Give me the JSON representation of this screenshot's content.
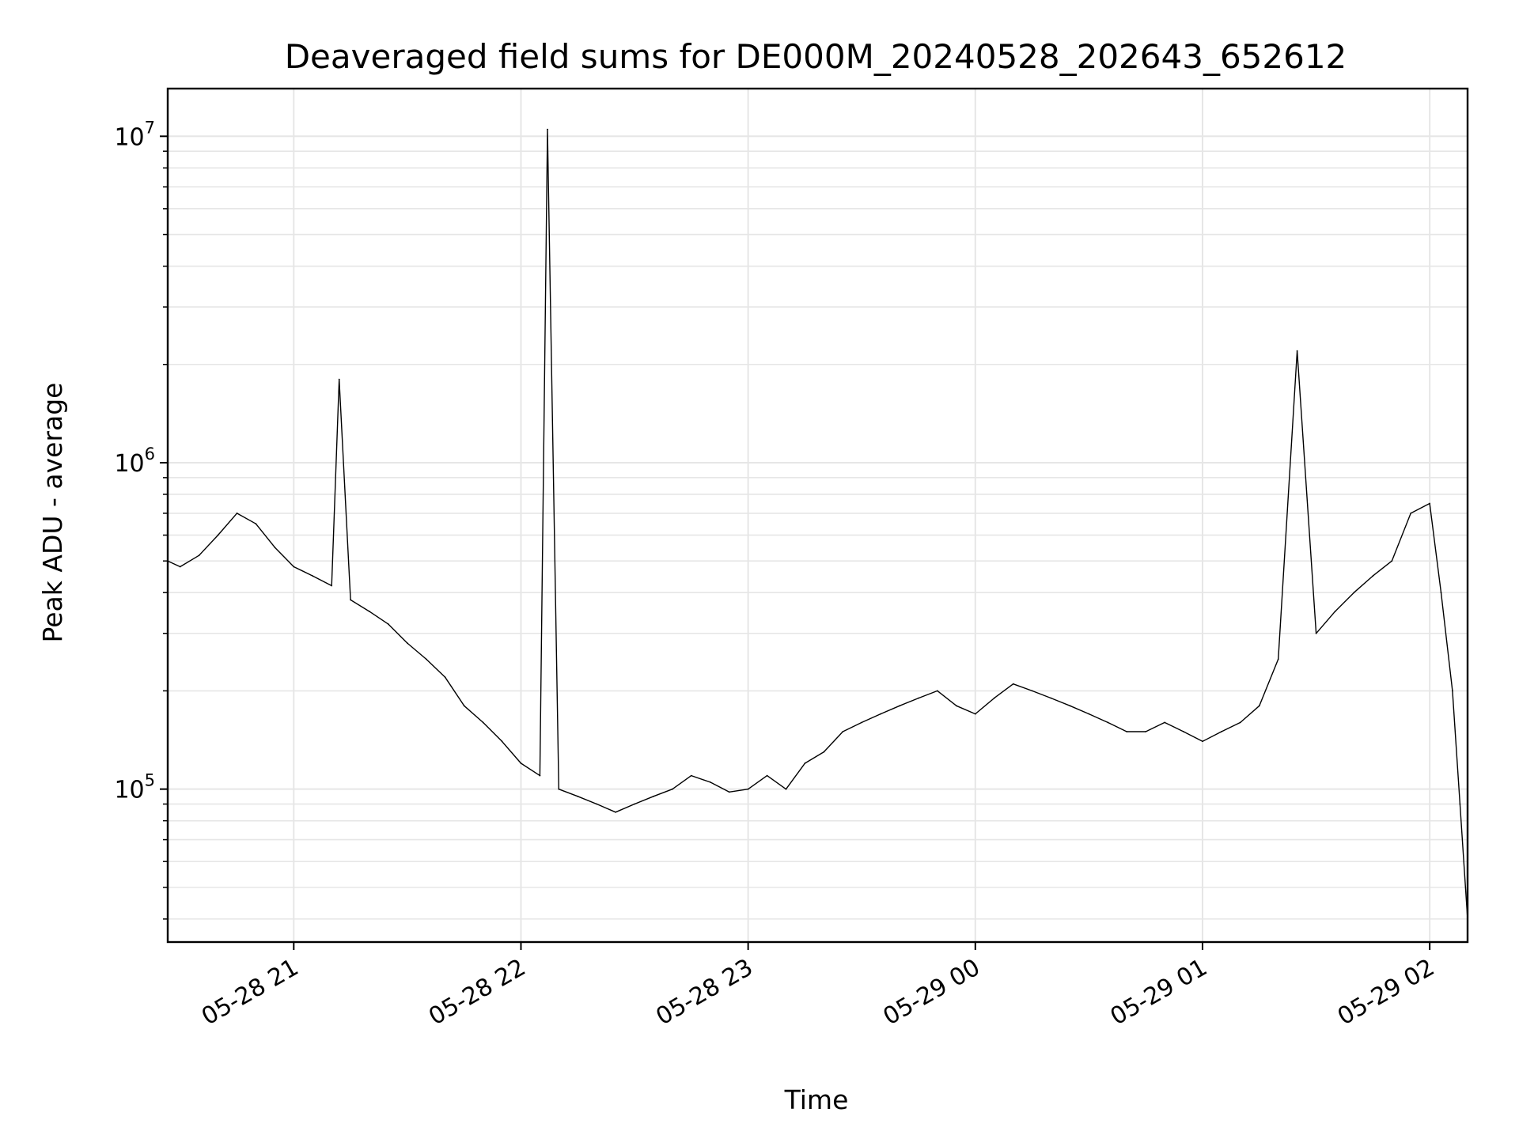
{
  "chart_data": {
    "type": "line",
    "title": "Deaveraged field sums for DE000M_20240528_202643_652612",
    "xlabel": "Time",
    "ylabel": "Peak ADU - average",
    "yscale": "log",
    "ylim": [
      34000,
      14000000
    ],
    "xlim": [
      "2024-05-28 20:26:43",
      "2024-05-29 02:10:00"
    ],
    "grid": true,
    "line_color": "#000000",
    "x_ticks": [
      "05-28 21",
      "05-28 22",
      "05-28 23",
      "05-29 00",
      "05-29 01",
      "05-29 02"
    ],
    "y_ticks": [
      {
        "base": "10",
        "exp": "5"
      },
      {
        "base": "10",
        "exp": "6"
      },
      {
        "base": "10",
        "exp": "7"
      }
    ],
    "series": [
      {
        "x": [
          "2024-05-28 20:26:43",
          "2024-05-28 20:30",
          "2024-05-28 20:35",
          "2024-05-28 20:40",
          "2024-05-28 20:45",
          "2024-05-28 20:50",
          "2024-05-28 20:55",
          "2024-05-28 21:00",
          "2024-05-28 21:05",
          "2024-05-28 21:10",
          "2024-05-28 21:12",
          "2024-05-28 21:15",
          "2024-05-28 21:20",
          "2024-05-28 21:25",
          "2024-05-28 21:30",
          "2024-05-28 21:35",
          "2024-05-28 21:40",
          "2024-05-28 21:45",
          "2024-05-28 21:50",
          "2024-05-28 21:55",
          "2024-05-28 22:00",
          "2024-05-28 22:05",
          "2024-05-28 22:07",
          "2024-05-28 22:10",
          "2024-05-28 22:15",
          "2024-05-28 22:20",
          "2024-05-28 22:25",
          "2024-05-28 22:30",
          "2024-05-28 22:35",
          "2024-05-28 22:40",
          "2024-05-28 22:45",
          "2024-05-28 22:50",
          "2024-05-28 22:55",
          "2024-05-28 23:00",
          "2024-05-28 23:05",
          "2024-05-28 23:10",
          "2024-05-28 23:15",
          "2024-05-28 23:20",
          "2024-05-28 23:25",
          "2024-05-28 23:30",
          "2024-05-28 23:35",
          "2024-05-28 23:40",
          "2024-05-28 23:45",
          "2024-05-28 23:50",
          "2024-05-28 23:55",
          "2024-05-29 00:00",
          "2024-05-29 00:05",
          "2024-05-29 00:10",
          "2024-05-29 00:15",
          "2024-05-29 00:20",
          "2024-05-29 00:25",
          "2024-05-29 00:30",
          "2024-05-29 00:35",
          "2024-05-29 00:40",
          "2024-05-29 00:45",
          "2024-05-29 00:50",
          "2024-05-29 00:55",
          "2024-05-29 01:00",
          "2024-05-29 01:05",
          "2024-05-29 01:10",
          "2024-05-29 01:15",
          "2024-05-29 01:20",
          "2024-05-29 01:25",
          "2024-05-29 01:30",
          "2024-05-29 01:35",
          "2024-05-29 01:40",
          "2024-05-29 01:45",
          "2024-05-29 01:50",
          "2024-05-29 01:55",
          "2024-05-29 02:00",
          "2024-05-29 02:03",
          "2024-05-29 02:06",
          "2024-05-29 02:08",
          "2024-05-29 02:10"
        ],
        "y": [
          500000,
          480000,
          520000,
          600000,
          700000,
          650000,
          550000,
          480000,
          450000,
          420000,
          1800000,
          380000,
          350000,
          320000,
          280000,
          250000,
          220000,
          180000,
          160000,
          140000,
          120000,
          110000,
          10500000,
          100000,
          95000,
          90000,
          85000,
          90000,
          95000,
          100000,
          110000,
          105000,
          98000,
          100000,
          110000,
          100000,
          120000,
          130000,
          150000,
          160000,
          170000,
          180000,
          190000,
          200000,
          180000,
          170000,
          190000,
          210000,
          200000,
          190000,
          180000,
          170000,
          160000,
          150000,
          150000,
          160000,
          150000,
          140000,
          150000,
          160000,
          180000,
          250000,
          2200000,
          300000,
          350000,
          400000,
          450000,
          500000,
          700000,
          750000,
          400000,
          200000,
          90000,
          40000
        ]
      }
    ]
  }
}
